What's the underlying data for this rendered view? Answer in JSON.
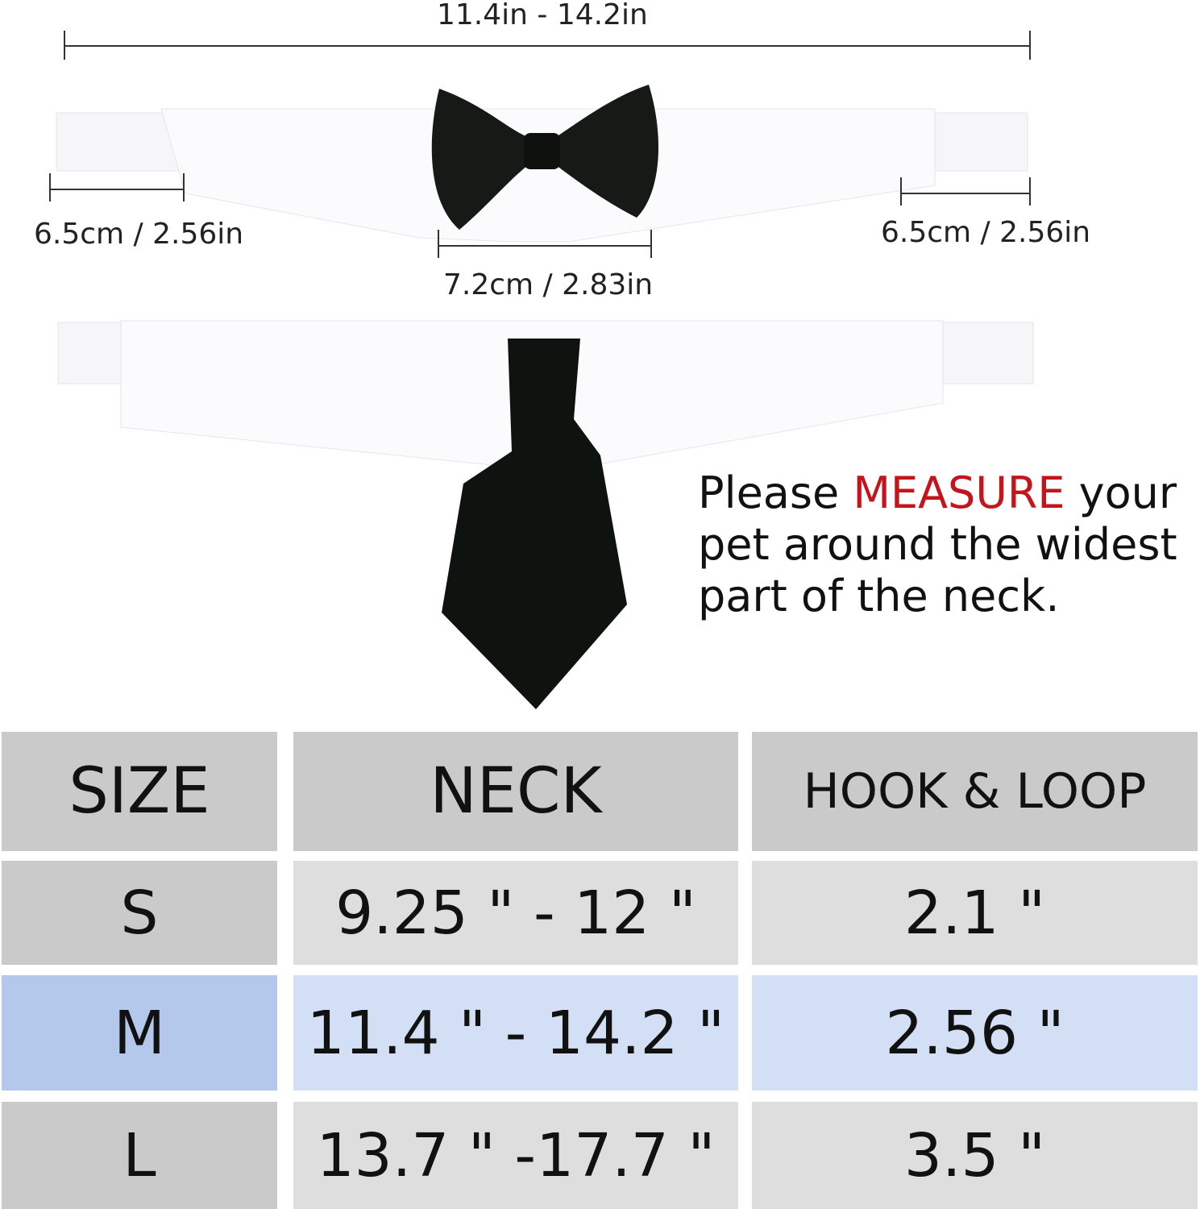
{
  "dimensions": {
    "total_length": "11.4in - 14.2in",
    "left_strap": "6.5cm / 2.56in",
    "right_strap": "6.5cm / 2.56in",
    "center_gap": "7.2cm / 2.83in"
  },
  "note": {
    "prefix": "Please ",
    "highlight": "MEASURE",
    "suffix": " your pet around the widest part of the neck.",
    "highlight_color": "#c4141c"
  },
  "size_table": {
    "headers": [
      "SIZE",
      "NECK",
      "HOOK & LOOP"
    ],
    "rows": [
      {
        "size": "S",
        "neck": "9.25 \" - 12 \"",
        "hook": "2.1 \""
      },
      {
        "size": "M",
        "neck": "11.4 \" - 14.2 \"",
        "hook": "2.56 \""
      },
      {
        "size": "L",
        "neck": "13.7 \" -17.7 \"",
        "hook": "3.5 \""
      }
    ],
    "highlighted_row": "M",
    "colors": {
      "gray_dark": "#cacaca",
      "gray_light": "#dedede",
      "blue_dark": "#b4c8ec",
      "blue_light": "#d3dff4"
    }
  }
}
